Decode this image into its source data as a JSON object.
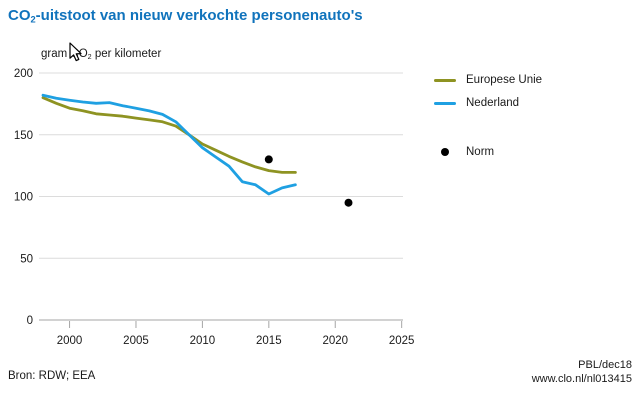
{
  "page": {
    "title_pre": "CO",
    "title_sub": "2",
    "title_post": "-uitstoot van nieuw verkochte personenauto's",
    "subtitle_pre": "gram CO",
    "subtitle_sub": "2",
    "subtitle_post": " per kilometer",
    "source": "Bron: RDW; EEA",
    "credit_line1": "PBL/dec18",
    "credit_line2": "www.clo.nl/nl013415"
  },
  "legend": {
    "items": [
      {
        "label": "Europese Unie",
        "marker": "line",
        "color": "#8e9322"
      },
      {
        "label": "Nederland",
        "marker": "line",
        "color": "#1fa0e2"
      },
      {
        "label": "Norm",
        "marker": "dot",
        "color": "#000000"
      }
    ]
  },
  "chart_data": {
    "type": "line",
    "title": "CO2-uitstoot van nieuw verkochte personenauto's",
    "ylabel": "gram CO2 per kilometer",
    "xlim": [
      1997.7,
      2025.1
    ],
    "ylim": [
      0,
      200
    ],
    "yticks": [
      0,
      50,
      100,
      150,
      200
    ],
    "xticks": [
      2000,
      2005,
      2010,
      2015,
      2020,
      2025
    ],
    "grid": "horizontal",
    "legend_position": "right",
    "colors": {
      "title": "#1073bc",
      "grid": "#dcdcdc",
      "axis": "#a6a6a6",
      "text": "#1a1a1a"
    },
    "series": [
      {
        "name": "Europese Unie",
        "color": "#8e9322",
        "x": [
          1998,
          1999,
          2000,
          2001,
          2002,
          2003,
          2004,
          2005,
          2006,
          2007,
          2008,
          2009,
          2010,
          2011,
          2012,
          2013,
          2014,
          2015,
          2016,
          2017
        ],
        "values": [
          180,
          175.5,
          171.5,
          169.5,
          167,
          166,
          165,
          163.5,
          162,
          160.5,
          157,
          150,
          142.5,
          137.5,
          132.5,
          128,
          124,
          121,
          119.5,
          119.5
        ]
      },
      {
        "name": "Nederland",
        "color": "#1fa0e2",
        "x": [
          1998,
          1999,
          2000,
          2001,
          2002,
          2003,
          2004,
          2005,
          2006,
          2007,
          2008,
          2009,
          2010,
          2011,
          2012,
          2013,
          2014,
          2015,
          2016,
          2017
        ],
        "values": [
          182,
          179.5,
          178,
          176.5,
          175.5,
          176,
          173.5,
          171.5,
          169.3,
          166.5,
          160.5,
          150,
          139.5,
          132,
          124.5,
          112,
          109.5,
          102,
          107,
          109.5
        ]
      }
    ],
    "points": [
      {
        "name": "Norm",
        "x": 2015,
        "value": 130,
        "color": "#000000"
      },
      {
        "name": "Norm",
        "x": 2021,
        "value": 95,
        "color": "#000000"
      }
    ]
  }
}
